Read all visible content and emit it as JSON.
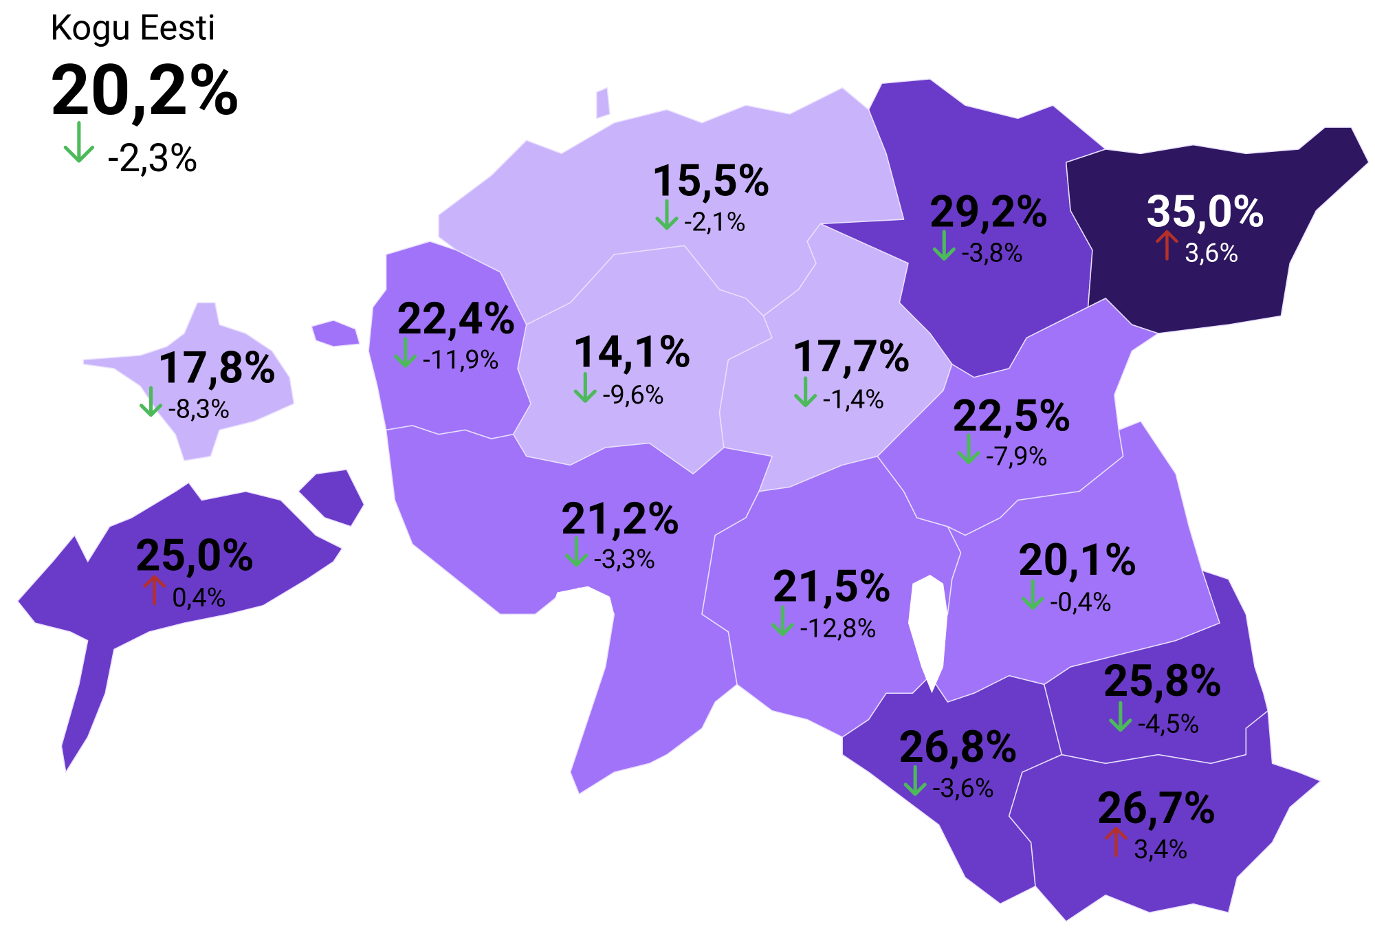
{
  "summary": {
    "title": "Kogu Eesti",
    "value": "20,2%",
    "change": "-2,3%"
  },
  "regions": [
    {
      "value": "15,5%",
      "change": "-2,1%",
      "color": "#c9b3fb"
    },
    {
      "value": "29,2%",
      "change": "-3,8%",
      "color": "#6a3bc8"
    },
    {
      "value": "35,0%",
      "change": "3,6%",
      "color": "#2e1760"
    },
    {
      "value": "22,4%",
      "change": "-11,9%",
      "color": "#a173f8"
    },
    {
      "value": "14,1%",
      "change": "-9,6%",
      "color": "#c9b3fb"
    },
    {
      "value": "17,7%",
      "change": "-1,4%",
      "color": "#c9b3fb"
    },
    {
      "value": "17,8%",
      "change": "-8,3%",
      "color": "#c9b3fb"
    },
    {
      "value": "25,0%",
      "change": "0,4%",
      "color": "#6a3bc8"
    },
    {
      "value": "21,2%",
      "change": "-3,3%",
      "color": "#a173f8"
    },
    {
      "value": "21,5%",
      "change": "-12,8%",
      "color": "#a173f8"
    },
    {
      "value": "22,5%",
      "change": "-7,9%",
      "color": "#a173f8"
    },
    {
      "value": "20,1%",
      "change": "-0,4%",
      "color": "#a173f8"
    },
    {
      "value": "26,8%",
      "change": "-3,6%",
      "color": "#6a3bc8"
    },
    {
      "value": "25,8%",
      "change": "-4,5%",
      "color": "#6a3bc8"
    },
    {
      "value": "26,7%",
      "change": "3,4%",
      "color": "#6a3bc8"
    }
  ]
}
